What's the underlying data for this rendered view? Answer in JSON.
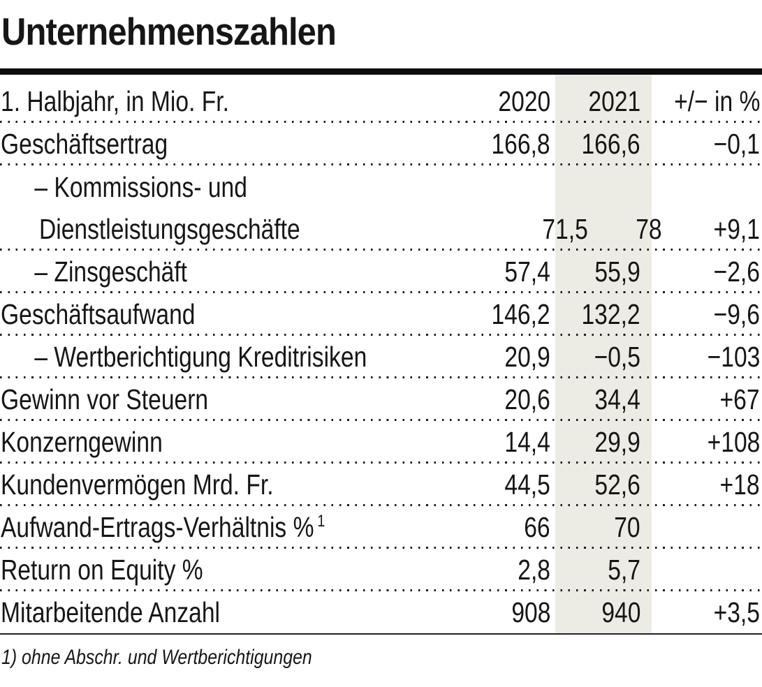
{
  "chart_data": {
    "type": "table",
    "title": "Unternehmenszahlen",
    "columns": [
      "1. Halbjahr, in Mio. Fr.",
      "2020",
      "2021",
      "+/− in %"
    ],
    "highlighted_column": "2021",
    "rows": [
      {
        "label": "Geschäftsertrag",
        "indent": false,
        "y2020": "166,8",
        "y2021": "166,6",
        "change": "−0,1"
      },
      {
        "label": "– Kommissions- und Dienstleistungsgeschäfte",
        "indent": true,
        "y2020": "71,5",
        "y2021": "78",
        "change": "+9,1"
      },
      {
        "label": "– Zinsgeschäft",
        "indent": true,
        "y2020": "57,4",
        "y2021": "55,9",
        "change": "−2,6"
      },
      {
        "label": "Geschäftsaufwand",
        "indent": false,
        "y2020": "146,2",
        "y2021": "132,2",
        "change": "−9,6"
      },
      {
        "label": "– Wertberichtigung Kreditrisiken",
        "indent": true,
        "y2020": "20,9",
        "y2021": "−0,5",
        "change": "−103"
      },
      {
        "label": "Gewinn vor Steuern",
        "indent": false,
        "y2020": "20,6",
        "y2021": "34,4",
        "change": "+67"
      },
      {
        "label": "Konzerngewinn",
        "indent": false,
        "y2020": "14,4",
        "y2021": "29,9",
        "change": "+108"
      },
      {
        "label": "Kundenvermögen Mrd. Fr.",
        "indent": false,
        "y2020": "44,5",
        "y2021": "52,6",
        "change": "+18"
      },
      {
        "label": "Aufwand-Ertrags-Verhältnis %",
        "sup": "1",
        "indent": false,
        "y2020": "66",
        "y2021": "70",
        "change": ""
      },
      {
        "label": "Return on Equity %",
        "indent": false,
        "y2020": "2,8",
        "y2021": "5,7",
        "change": ""
      },
      {
        "label": "Mitarbeitende Anzahl",
        "indent": false,
        "y2020": "908",
        "y2021": "940",
        "change": "+3,5"
      }
    ],
    "footnote": "1) ohne Abschr. und Wertberichtigungen"
  },
  "colors": {
    "highlight_band": "#ECEBE4",
    "rule": "#0D0D0D",
    "text": "#161616"
  }
}
